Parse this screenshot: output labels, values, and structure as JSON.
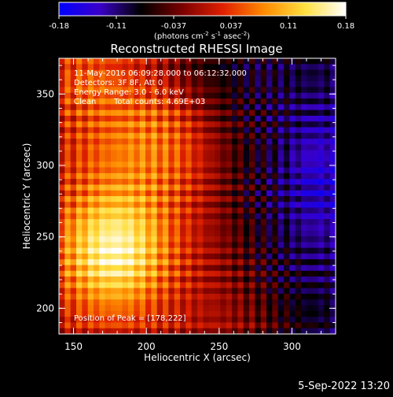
{
  "chart_data": {
    "type": "heatmap",
    "title": "Reconstructed RHESSI Image",
    "xlabel": "Heliocentric X (arcsec)",
    "ylabel": "Heliocentric Y (arcsec)",
    "xlim": [
      140,
      330
    ],
    "ylim": [
      182,
      375
    ],
    "xticks": [
      150,
      200,
      250,
      300
    ],
    "yticks": [
      200,
      250,
      300,
      350
    ],
    "grid": false,
    "colorbar": {
      "vmin": -0.18,
      "vmax": 0.18,
      "ticks": [
        "-0.18",
        "-0.11",
        "-0.037",
        "0.037",
        "0.11",
        "0.18"
      ],
      "unit_parts": {
        "open": "(photons cm",
        "sup1": "-2",
        "mid1": " s",
        "sup2": "-1",
        "mid2": " asec",
        "sup3": "-2",
        "close": ")"
      },
      "colormap": [
        "#0000ff",
        "#3a00c8",
        "#000000",
        "#7a0000",
        "#e02000",
        "#ff8a00",
        "#ffe040",
        "#ffffff"
      ]
    },
    "annotations": {
      "time_range": "11-May-2016 06:09:28.000 to 06:12:32.000",
      "detectors": "Detectors: 3F 8F, Att 0",
      "energy": "Energy Range: 3.0 - 6.0 keV",
      "method": "Clean",
      "counts": "Total counts: 4.69E+03",
      "peak": "Position of Peak = [178,222]"
    },
    "peak_position": [
      178,
      222
    ],
    "grid_size": [
      48,
      48
    ]
  },
  "footer": {
    "timestamp": "5-Sep-2022 13:20"
  }
}
